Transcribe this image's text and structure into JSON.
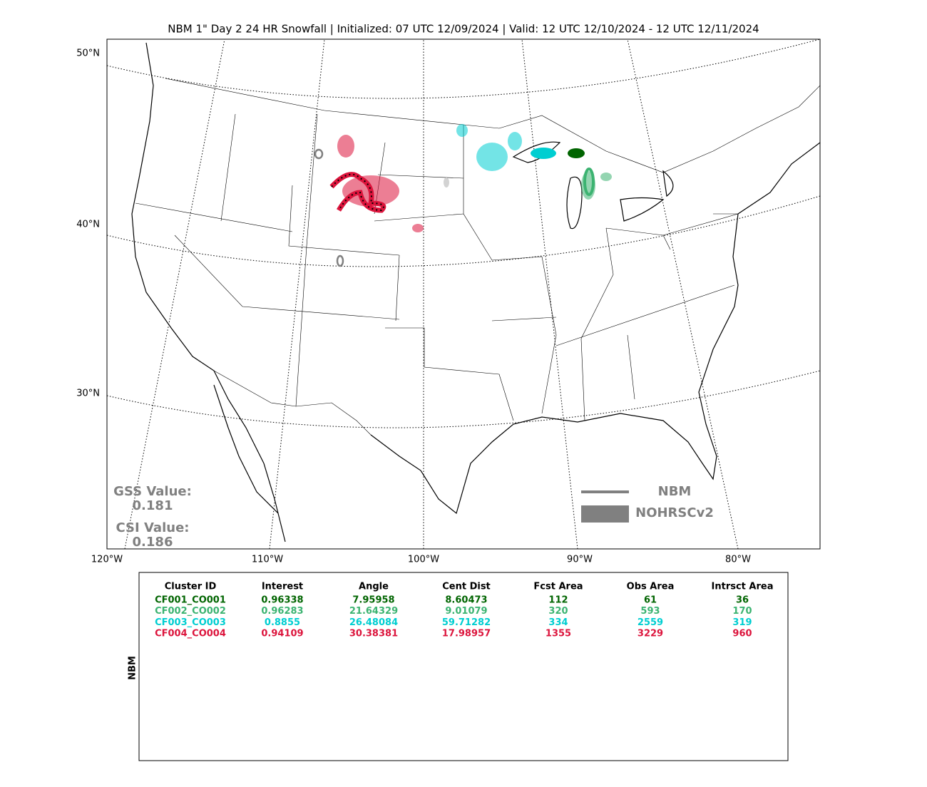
{
  "title": "NBM 1\" Day 2 24 HR Snowfall | Initialized: 07 UTC 12/09/2024 | Valid: 12 UTC 12/10/2024 - 12 UTC 12/11/2024",
  "map": {
    "lat_labels": [
      "50°N",
      "40°N",
      "30°N"
    ],
    "lon_labels": [
      "120°W",
      "110°W",
      "100°W",
      "90°W",
      "80°W"
    ],
    "gss_label": "GSS Value:",
    "gss_value": 0.181,
    "csi_label": "CSI Value:",
    "csi_value": 0.186,
    "legend": {
      "line": "NBM",
      "fill": "NOHRSCv2",
      "color": "#808080"
    }
  },
  "table": {
    "side_label": "NBM",
    "header": [
      "Cluster ID",
      "Interest",
      "Angle",
      "Cent Dist",
      "Fcst Area",
      "Obs Area",
      "Intrsct Area"
    ],
    "rows": [
      {
        "color": "#006400",
        "cells": [
          "CF001_CO001",
          0.96338,
          7.95958,
          8.60473,
          112,
          61,
          36
        ]
      },
      {
        "color": "#3cb371",
        "cells": [
          "CF002_CO002",
          0.96283,
          21.64329,
          9.01079,
          320,
          593,
          170
        ]
      },
      {
        "color": "#00ced1",
        "cells": [
          "CF003_CO003",
          0.8855,
          26.48084,
          59.71282,
          334,
          2559,
          319
        ]
      },
      {
        "color": "#dc143c",
        "cells": [
          "CF004_CO004",
          0.94109,
          30.38381,
          17.98957,
          1355,
          3229,
          960
        ]
      }
    ]
  }
}
